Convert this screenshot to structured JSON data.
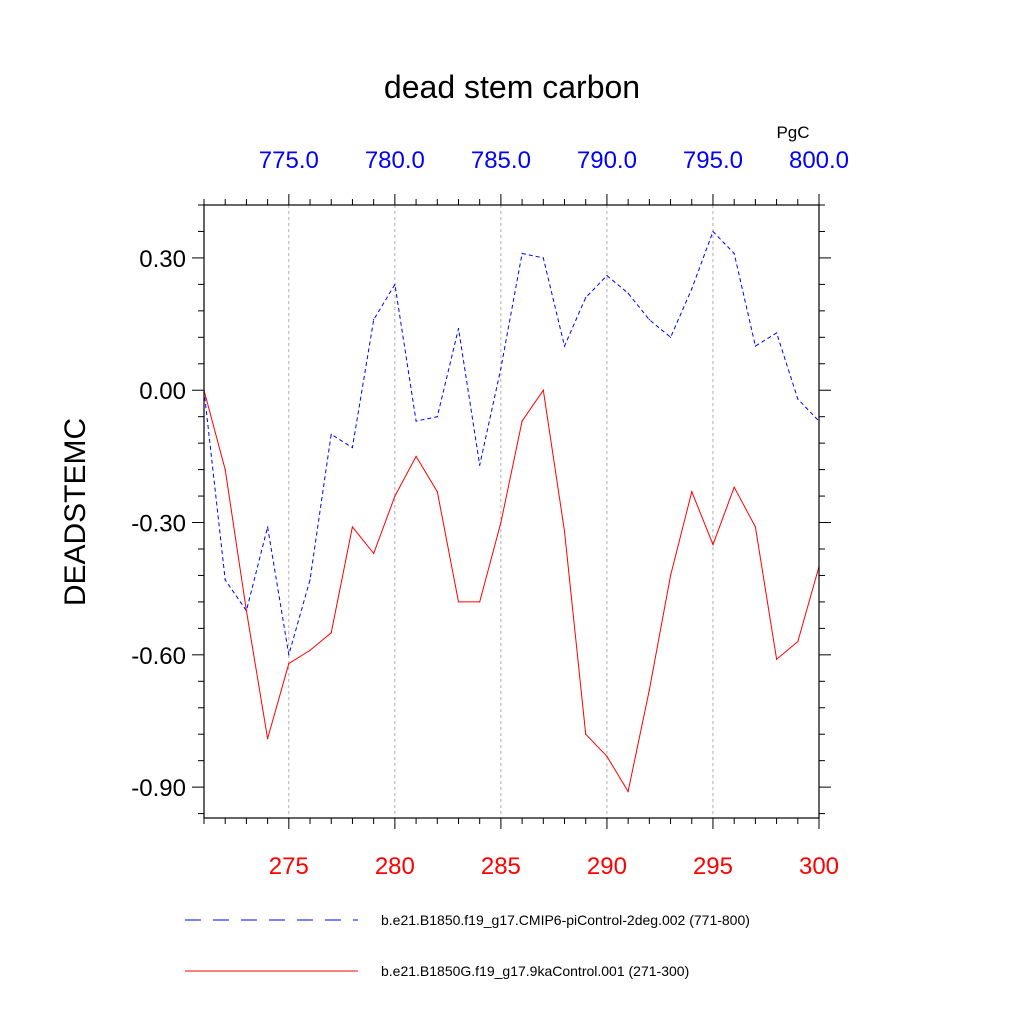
{
  "chart_data": {
    "type": "line",
    "title": "dead stem carbon",
    "units_label": "PgC",
    "ylabel": "DEADSTEMC",
    "ylim": [
      -0.97,
      0.42
    ],
    "yticks": [
      -0.9,
      -0.6,
      -0.3,
      0.0,
      0.3
    ],
    "ytick_labels": [
      "-0.90",
      "-0.60",
      "-0.30",
      "0.00",
      "0.30"
    ],
    "grid_x": true,
    "x_bottom": {
      "range": [
        271,
        300
      ],
      "ticks": [
        275,
        280,
        285,
        290,
        295,
        300
      ],
      "tick_labels": [
        "275",
        "280",
        "285",
        "290",
        "295",
        "300"
      ],
      "color": "#ff0000"
    },
    "x_top": {
      "range": [
        771,
        800
      ],
      "ticks": [
        775,
        780,
        785,
        790,
        795,
        800
      ],
      "tick_labels": [
        "775.0",
        "780.0",
        "785.0",
        "790.0",
        "795.0",
        "800.0"
      ],
      "color": "#0000ff"
    },
    "series": [
      {
        "name": "b.e21.B1850.f19_g17.CMIP6-piControl-2deg.002 (771-800)",
        "axis": "top",
        "color": "#0000ff",
        "style": "dashed",
        "x": [
          771,
          772,
          773,
          774,
          775,
          776,
          777,
          778,
          779,
          780,
          781,
          782,
          783,
          784,
          785,
          786,
          787,
          788,
          789,
          790,
          791,
          792,
          793,
          794,
          795,
          796,
          797,
          798,
          799,
          800
        ],
        "values": [
          0.0,
          -0.43,
          -0.5,
          -0.31,
          -0.6,
          -0.43,
          -0.1,
          -0.13,
          0.16,
          0.24,
          -0.07,
          -0.06,
          0.14,
          -0.17,
          0.05,
          0.31,
          0.3,
          0.1,
          0.21,
          0.26,
          0.22,
          0.16,
          0.12,
          0.23,
          0.36,
          0.31,
          0.1,
          0.13,
          -0.02,
          -0.07
        ]
      },
      {
        "name": "b.e21.B1850G.f19_g17.9kaControl.001 (271-300)",
        "axis": "bottom",
        "color": "#ff0000",
        "style": "solid",
        "x": [
          271,
          272,
          273,
          274,
          275,
          276,
          277,
          278,
          279,
          280,
          281,
          282,
          283,
          284,
          285,
          286,
          287,
          288,
          289,
          290,
          291,
          292,
          293,
          294,
          295,
          296,
          297,
          298,
          299,
          300
        ],
        "values": [
          0.0,
          -0.18,
          -0.5,
          -0.79,
          -0.62,
          -0.59,
          -0.55,
          -0.31,
          -0.37,
          -0.24,
          -0.15,
          -0.23,
          -0.48,
          -0.48,
          -0.3,
          -0.07,
          0.0,
          -0.32,
          -0.78,
          -0.83,
          -0.91,
          -0.68,
          -0.42,
          -0.23,
          -0.35,
          -0.22,
          -0.31,
          -0.61,
          -0.57,
          -0.4
        ]
      }
    ],
    "legend": {
      "placement": "bottom",
      "entries": [
        "b.e21.B1850.f19_g17.CMIP6-piControl-2deg.002 (771-800)",
        "b.e21.B1850G.f19_g17.9kaControl.001 (271-300)"
      ]
    }
  }
}
